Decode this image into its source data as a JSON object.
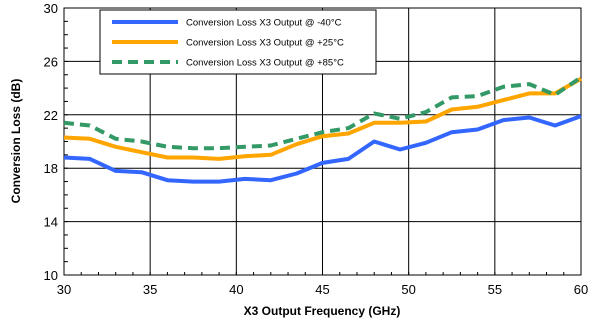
{
  "chart_data": {
    "type": "line",
    "xlabel": "X3 Output Frequency (GHz)",
    "ylabel": "Conversion Loss (dB)",
    "xlim": [
      30,
      60
    ],
    "ylim": [
      10,
      30
    ],
    "xticks": [
      30,
      35,
      40,
      45,
      50,
      55,
      60
    ],
    "yticks": [
      10,
      14,
      18,
      22,
      26,
      30
    ],
    "grid": true,
    "legend_position": "top-left",
    "x": [
      30,
      31.5,
      33,
      34.5,
      36,
      37.5,
      39,
      40.5,
      42,
      43.5,
      45,
      46.5,
      48,
      49.5,
      51,
      52.5,
      54,
      55.5,
      57,
      58.5,
      60
    ],
    "series": [
      {
        "name": "Conversion Loss X3 Output @ -40°C",
        "color": "#3366ff",
        "style": "solid",
        "values": [
          18.8,
          18.7,
          17.8,
          17.7,
          17.1,
          17.0,
          17.0,
          17.2,
          17.1,
          17.6,
          18.4,
          18.7,
          20.0,
          19.4,
          19.9,
          20.7,
          20.9,
          21.6,
          21.8,
          21.2,
          21.9
        ]
      },
      {
        "name": "Conversion Loss X3 Output @ +25°C",
        "color": "#ffa500",
        "style": "solid",
        "values": [
          20.3,
          20.2,
          19.6,
          19.2,
          18.8,
          18.8,
          18.7,
          18.9,
          19.0,
          19.8,
          20.4,
          20.6,
          21.4,
          21.4,
          21.5,
          22.4,
          22.6,
          23.1,
          23.6,
          23.6,
          24.7
        ]
      },
      {
        "name": "Conversion Loss X3 Output @ +85°C",
        "color": "#339966",
        "style": "dashed",
        "values": [
          21.4,
          21.2,
          20.2,
          20.0,
          19.6,
          19.5,
          19.5,
          19.6,
          19.7,
          20.2,
          20.7,
          21.0,
          22.1,
          21.7,
          22.2,
          23.3,
          23.4,
          24.1,
          24.3,
          23.5,
          24.8
        ]
      }
    ]
  }
}
